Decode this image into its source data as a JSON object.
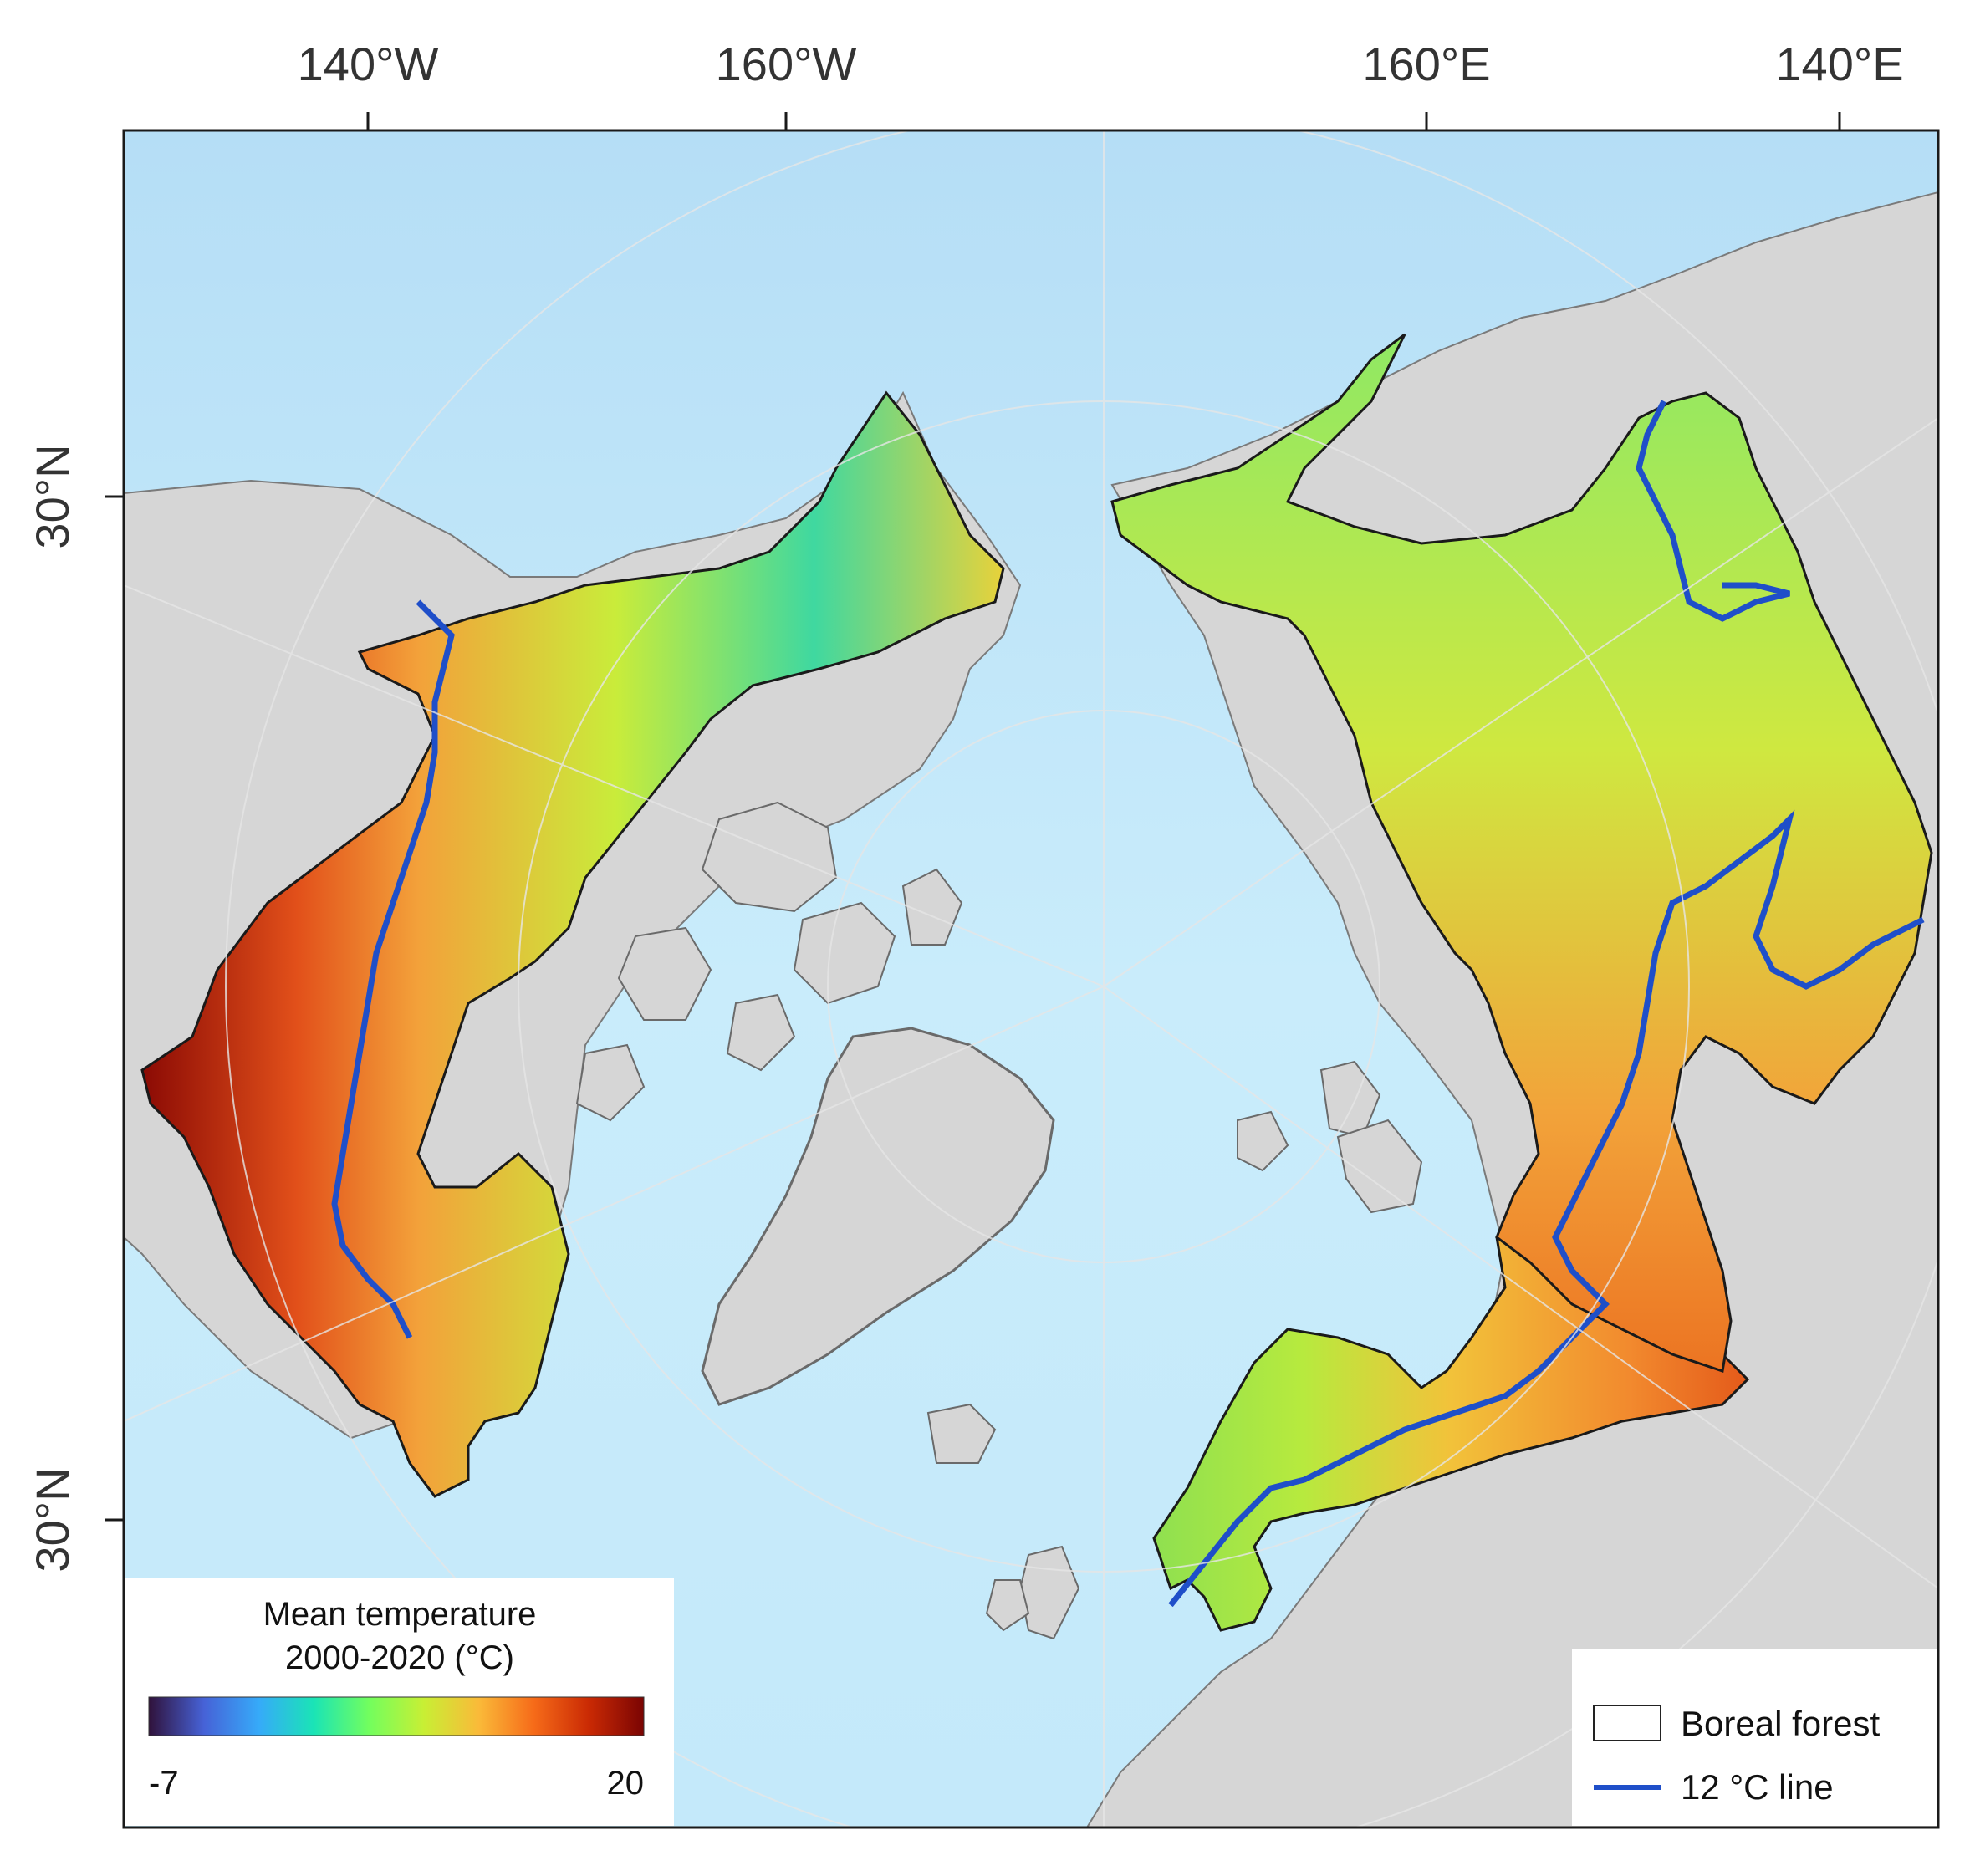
{
  "map": {
    "graticule_labels": {
      "top": [
        "140°W",
        "160°W",
        "160°E",
        "140°E"
      ],
      "left": [
        "30°N",
        "30°N"
      ]
    },
    "temperature_legend": {
      "title_line1": "Mean temperature",
      "title_line2": "2000-2020 (°C)",
      "min_label": "-7",
      "max_label": "20",
      "min_value": -7,
      "max_value": 20,
      "colormap": [
        "#30123b",
        "#4662d7",
        "#36aaf9",
        "#1ae4b6",
        "#72fe5e",
        "#c8ef34",
        "#faba39",
        "#f66b19",
        "#ca2a04",
        "#7a0403"
      ]
    },
    "feature_legend": {
      "items": [
        {
          "label": "Boreal forest",
          "symbol": "box",
          "color": "#222222"
        },
        {
          "label": "12 °C line",
          "symbol": "line",
          "color": "#1f4fc9"
        }
      ]
    },
    "colors": {
      "ocean": "#c9ecfb",
      "ocean_deep": "#a9d8f2",
      "land": "#d6d6d6",
      "forest_outline": "#1a1a1a",
      "isotherm": "#1f4fc9"
    }
  }
}
